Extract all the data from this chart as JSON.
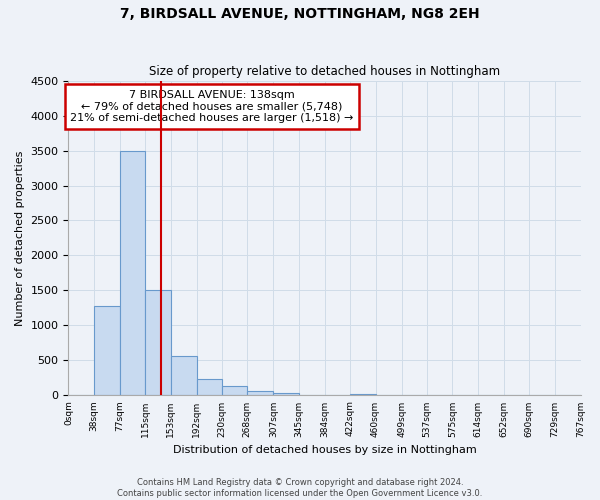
{
  "title": "7, BIRDSALL AVENUE, NOTTINGHAM, NG8 2EH",
  "subtitle": "Size of property relative to detached houses in Nottingham",
  "xlabel": "Distribution of detached houses by size in Nottingham",
  "ylabel": "Number of detached properties",
  "bar_edges": [
    0,
    38,
    77,
    115,
    153,
    192,
    230,
    268,
    307,
    345,
    384,
    422,
    460,
    499,
    537,
    575,
    614,
    652,
    690,
    729,
    767
  ],
  "bar_heights": [
    0,
    1280,
    3500,
    1500,
    570,
    240,
    130,
    70,
    30,
    0,
    0,
    20,
    0,
    0,
    0,
    0,
    0,
    0,
    0,
    0
  ],
  "bar_color": "#c8daf0",
  "bar_edge_color": "#6899cc",
  "vline_x": 138,
  "vline_color": "#cc0000",
  "ylim": [
    0,
    4500
  ],
  "annotation_title": "7 BIRDSALL AVENUE: 138sqm",
  "annotation_line1": "← 79% of detached houses are smaller (5,748)",
  "annotation_line2": "21% of semi-detached houses are larger (1,518) →",
  "annotation_box_color": "#ffffff",
  "annotation_box_edge": "#cc0000",
  "tick_labels": [
    "0sqm",
    "38sqm",
    "77sqm",
    "115sqm",
    "153sqm",
    "192sqm",
    "230sqm",
    "268sqm",
    "307sqm",
    "345sqm",
    "384sqm",
    "422sqm",
    "460sqm",
    "499sqm",
    "537sqm",
    "575sqm",
    "614sqm",
    "652sqm",
    "690sqm",
    "729sqm",
    "767sqm"
  ],
  "footnote1": "Contains HM Land Registry data © Crown copyright and database right 2024.",
  "footnote2": "Contains public sector information licensed under the Open Government Licence v3.0.",
  "grid_color": "#d0dce8",
  "background_color": "#eef2f8",
  "plot_bg_color": "#eef2f8"
}
